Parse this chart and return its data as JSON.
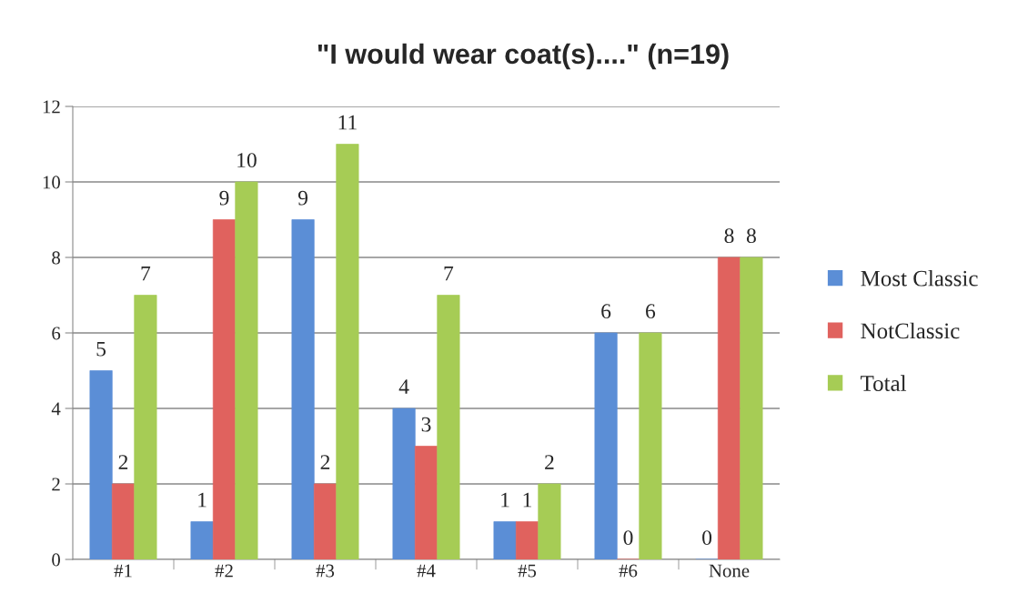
{
  "chart_data": {
    "type": "bar",
    "title": "\"I would wear coat(s)....\" (n=19)",
    "categories": [
      "#1",
      "#2",
      "#3",
      "#4",
      "#5",
      "#6",
      "None"
    ],
    "series": [
      {
        "name": "Most Classic",
        "color": "#5b8ed6",
        "values": [
          5,
          1,
          9,
          4,
          1,
          6,
          0
        ]
      },
      {
        "name": "NotClassic",
        "color": "#e0625e",
        "values": [
          2,
          9,
          2,
          3,
          1,
          0,
          8
        ]
      },
      {
        "name": "Total",
        "color": "#a6cc55",
        "values": [
          7,
          10,
          11,
          7,
          2,
          6,
          8
        ]
      }
    ],
    "ylim": [
      0,
      12
    ],
    "yticks": [
      0,
      2,
      4,
      6,
      8,
      10,
      12
    ],
    "grid": "y",
    "legend": "right",
    "data_labels": true
  }
}
